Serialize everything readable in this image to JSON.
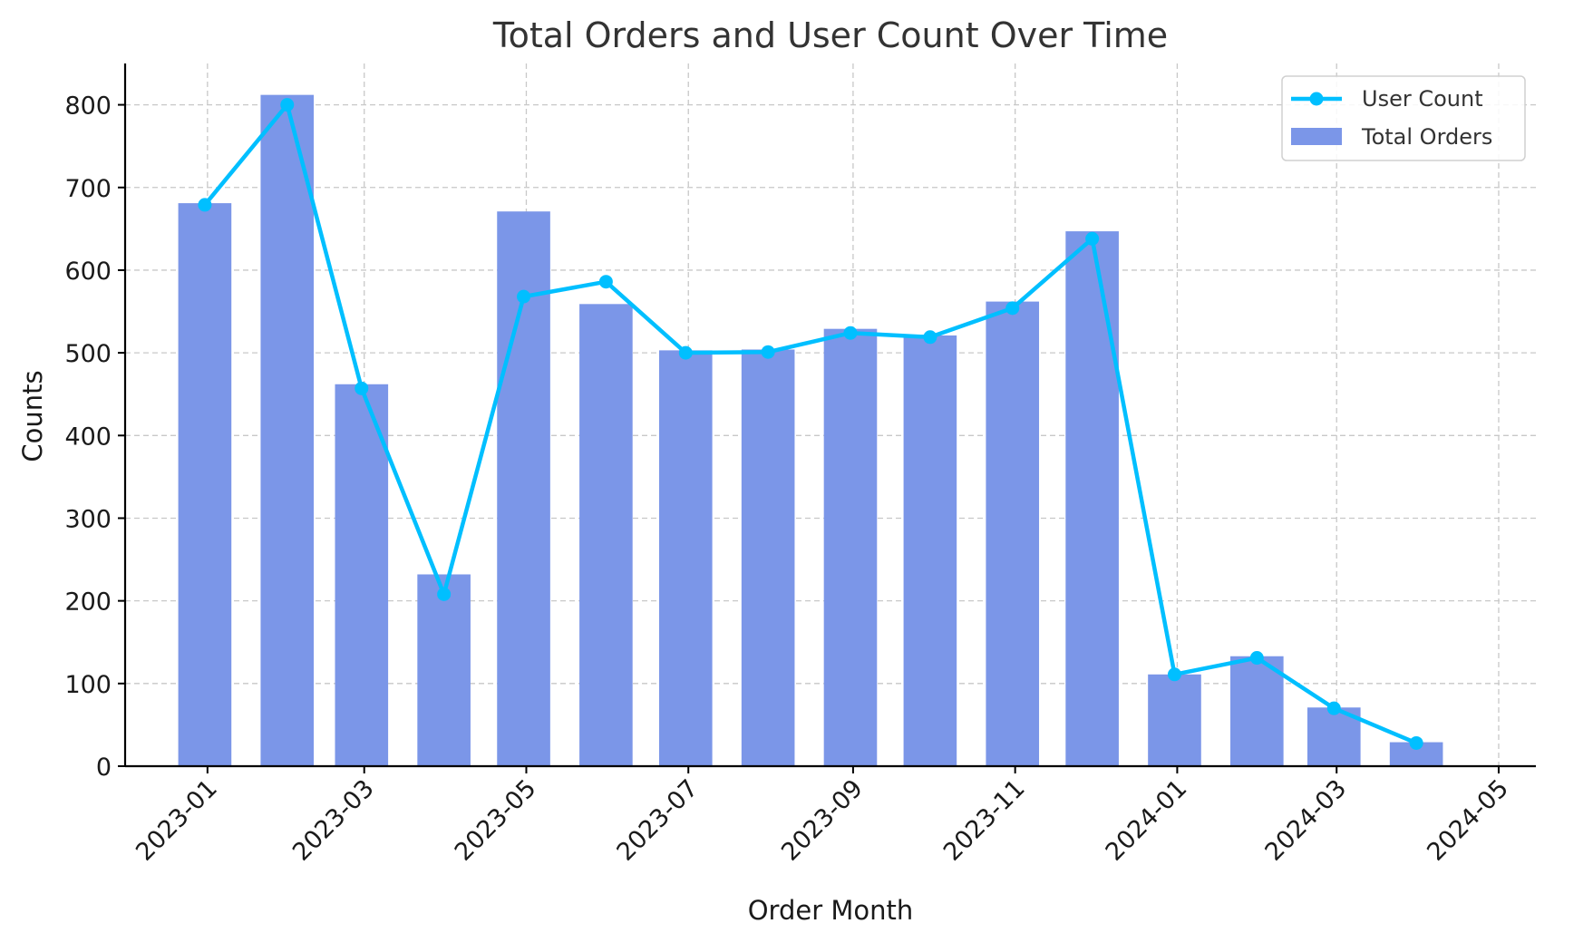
{
  "chart_data": {
    "type": "bar",
    "title": "Total Orders and User Count Over Time",
    "xlabel": "Order Month",
    "ylabel": "Counts",
    "ylim": [
      0,
      850
    ],
    "yticks": [
      0,
      100,
      200,
      300,
      400,
      500,
      600,
      700,
      800
    ],
    "xlim": [
      "2022-12-01",
      "2024-05-15"
    ],
    "xticks": [
      "2023-01",
      "2023-03",
      "2023-05",
      "2023-07",
      "2023-09",
      "2023-11",
      "2024-01",
      "2024-03",
      "2024-05"
    ],
    "x": [
      "2022-12-31",
      "2023-01-31",
      "2023-02-28",
      "2023-03-31",
      "2023-04-30",
      "2023-05-31",
      "2023-06-30",
      "2023-07-31",
      "2023-08-31",
      "2023-09-30",
      "2023-10-31",
      "2023-11-30",
      "2023-12-31",
      "2024-01-31",
      "2024-02-29",
      "2024-03-31"
    ],
    "grid": true,
    "legend_position": "top-right",
    "series": [
      {
        "name": "User Count",
        "type": "line",
        "color": "#00bfff",
        "values": [
          679,
          800,
          457,
          208,
          568,
          586,
          500,
          501,
          524,
          519,
          554,
          638,
          111,
          131,
          70,
          28
        ]
      },
      {
        "name": "Total Orders",
        "type": "bar",
        "color": "#7b96e8",
        "values": [
          681,
          812,
          462,
          232,
          671,
          559,
          503,
          504,
          529,
          521,
          562,
          647,
          111,
          133,
          71,
          29
        ]
      }
    ]
  }
}
